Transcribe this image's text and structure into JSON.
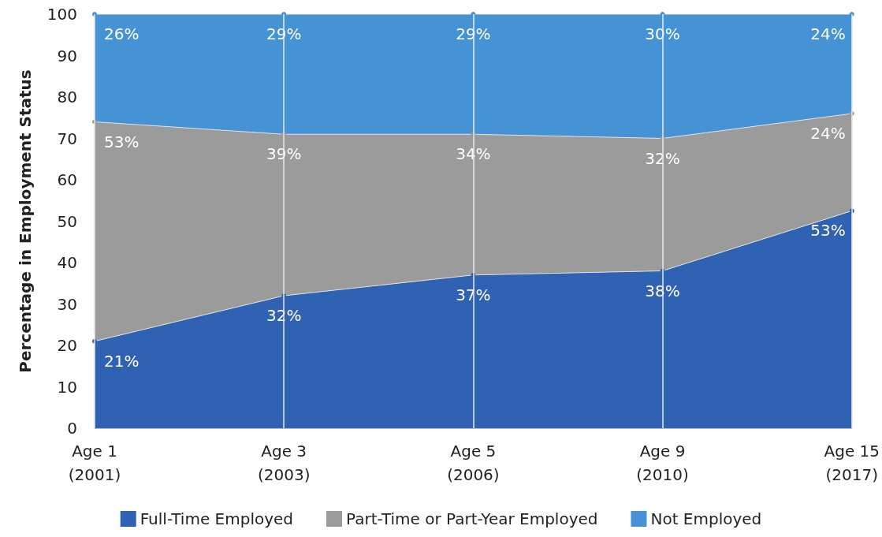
{
  "chart_data": {
    "type": "area",
    "stacked": true,
    "ylabel": "Percentage in Employment Status",
    "categories": [
      "Age 1\n(2001)",
      "Age 3\n(2003)",
      "Age 5\n(2006)",
      "Age 9\n(2010)",
      "Age 15\n(2017)"
    ],
    "series": [
      {
        "name": "Full-Time Employed",
        "color": "#2f62b2",
        "values": [
          21,
          32,
          37,
          38,
          52.5
        ],
        "value_labels": [
          "21%",
          "32%",
          "37%",
          "38%",
          "53%"
        ]
      },
      {
        "name": "Part-Time or Part-Year Employed",
        "color": "#9b9b9b",
        "values": [
          53,
          39,
          34,
          32,
          23.5
        ],
        "value_labels": [
          "53%",
          "39%",
          "34%",
          "32%",
          "24%"
        ]
      },
      {
        "name": "Not Employed",
        "color": "#4592d4",
        "values": [
          26,
          29,
          29,
          30,
          24
        ],
        "value_labels": [
          "26%",
          "29%",
          "29%",
          "30%",
          "24%"
        ]
      }
    ],
    "ylim": [
      0,
      100
    ],
    "yticks": [
      0,
      10,
      20,
      30,
      40,
      50,
      60,
      70,
      80,
      90,
      100
    ],
    "grid": true,
    "legend": "bottom"
  }
}
